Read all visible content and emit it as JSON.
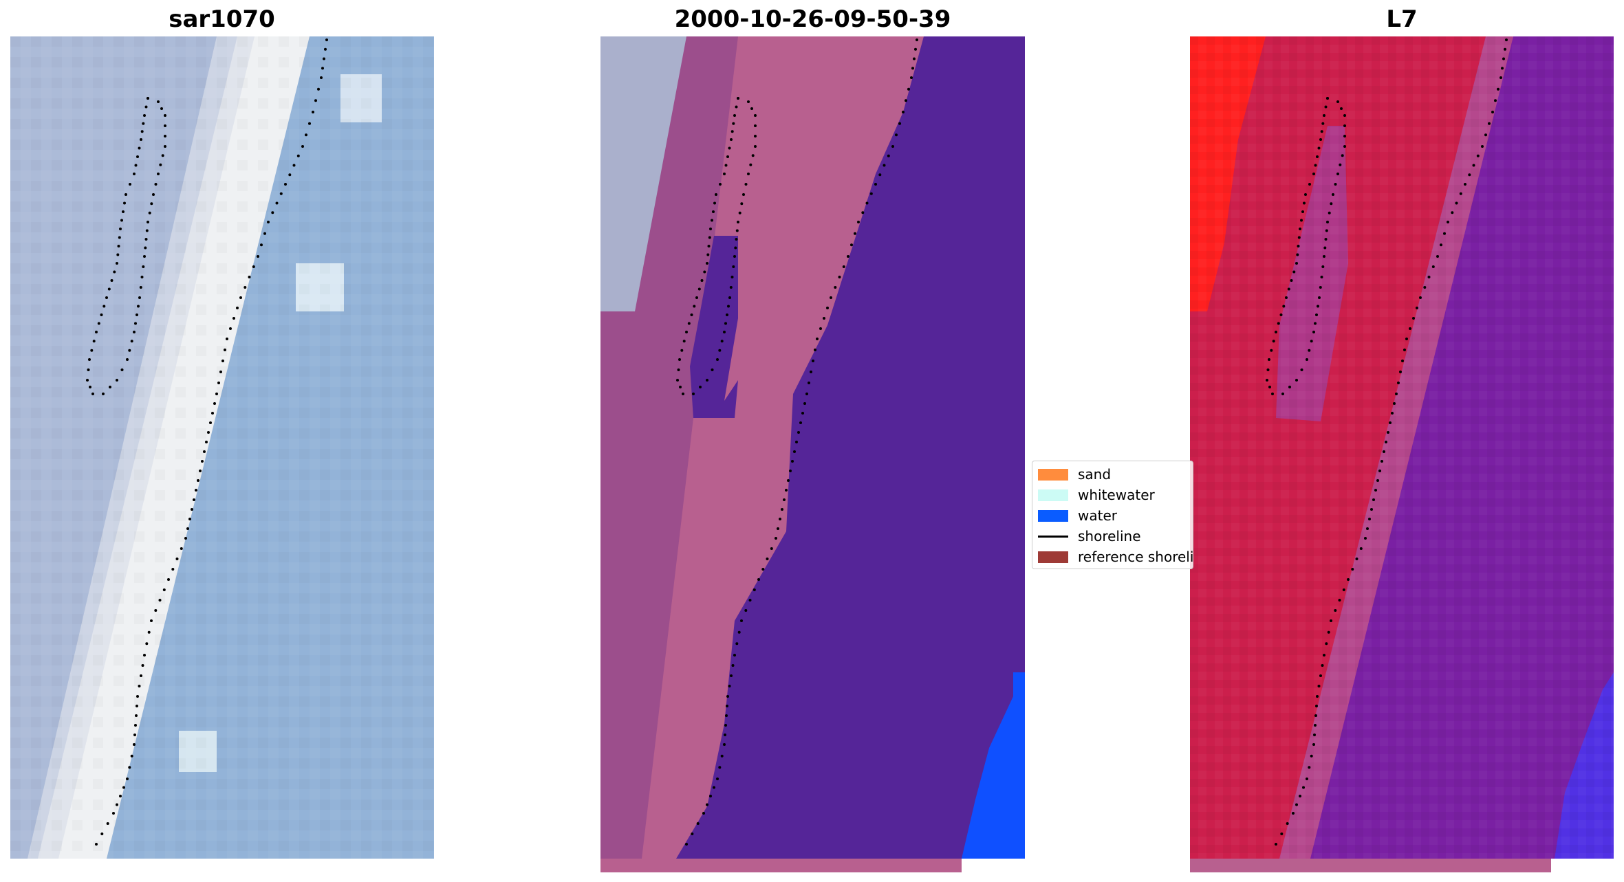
{
  "panels": [
    {
      "title": "sar1070",
      "image": "true-color satellite tile"
    },
    {
      "title": "2000-10-26-09-50-39",
      "image": "classified tile"
    },
    {
      "title": "L7",
      "image": "false-color tile"
    }
  ],
  "legend": {
    "items": [
      {
        "label": "sand",
        "color": "#ff8c3d",
        "kind": "patch"
      },
      {
        "label": "whitewater",
        "color": "#ccfbf5",
        "kind": "patch"
      },
      {
        "label": "water",
        "color": "#0a5cff",
        "kind": "patch"
      },
      {
        "label": "shoreline",
        "color": "#000000",
        "kind": "line"
      },
      {
        "label": "reference shoreline",
        "color": "#9e3a36",
        "kind": "patch"
      }
    ]
  },
  "colors": {
    "panel1_water": "#8fb0d6",
    "panel1_beach": "#eef0f2",
    "panel2_beach": "#9c4e8c",
    "panel2_pink": "#b8608f",
    "panel2_water": "#552598",
    "panel2_blue": "#0f50ff",
    "panel3_red": "#cc1f4c",
    "panel3_bright": "#ff2020",
    "panel3_purple": "#7a20a3",
    "shoreline_dots": "#000000"
  }
}
